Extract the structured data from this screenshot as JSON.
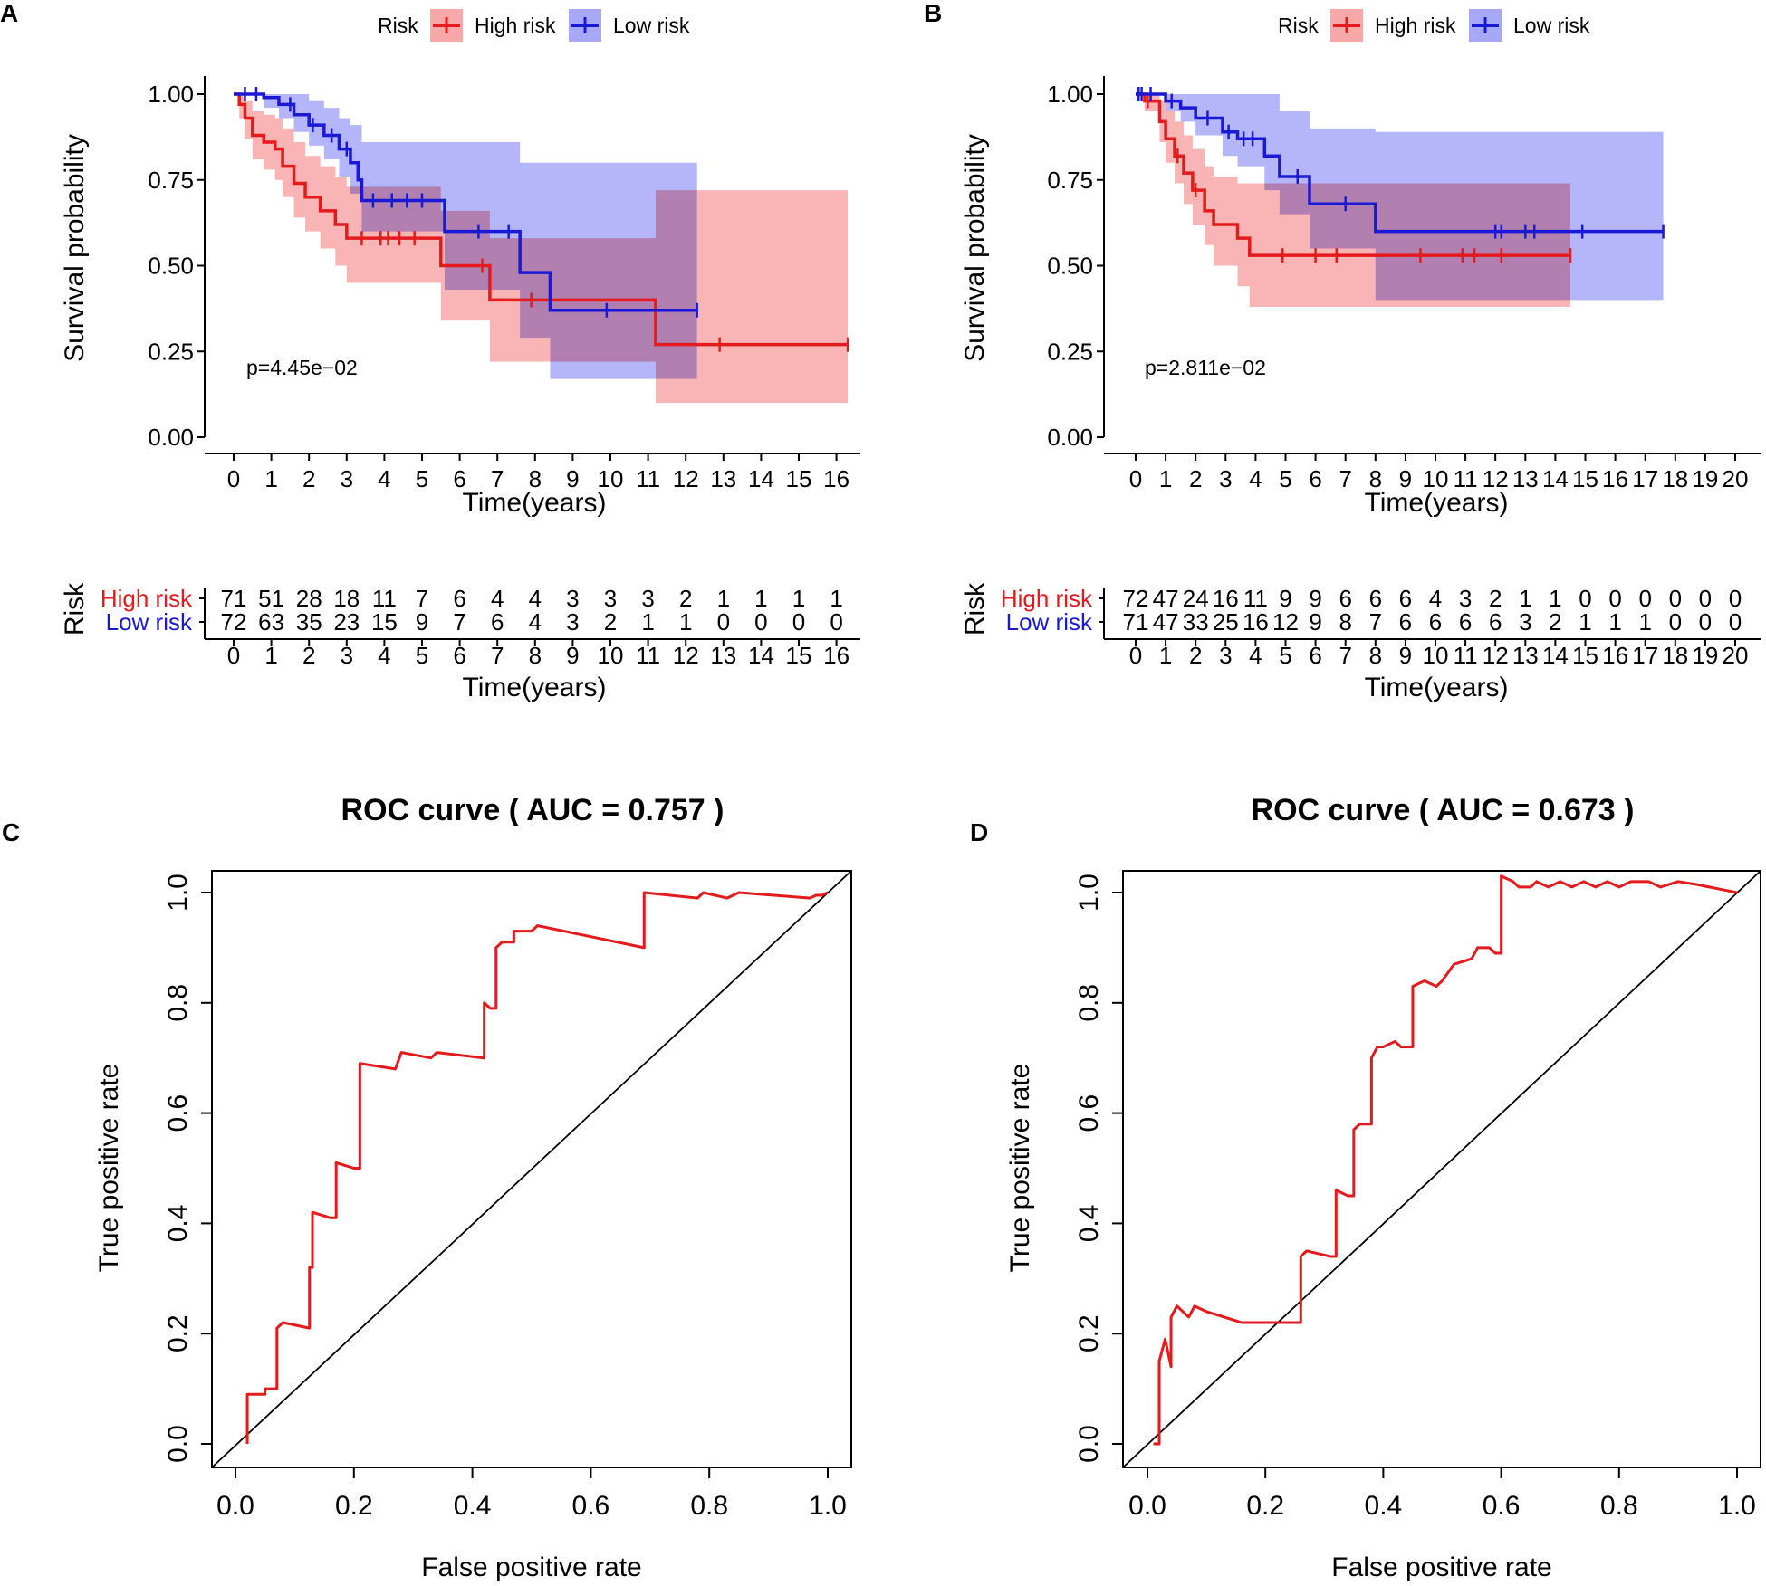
{
  "panels": {
    "A": {
      "letter": "A",
      "legend_title": "Risk",
      "legend_high": "High risk",
      "legend_low": "Low risk",
      "ylabel": "Survival probability",
      "xlabel": "Time(years)",
      "pvalue": "p=4.45e−02",
      "y_ticks": [
        "0.00",
        "0.25",
        "0.50",
        "0.75",
        "1.00"
      ],
      "x_ticks": [
        "0",
        "1",
        "2",
        "3",
        "4",
        "5",
        "6",
        "7",
        "8",
        "9",
        "10",
        "11",
        "12",
        "13",
        "14",
        "15",
        "16"
      ],
      "risk_table_ylabel": "Risk",
      "risk_table_xlabel": "Time(years)",
      "risk_high_counts": [
        "71",
        "51",
        "28",
        "18",
        "11",
        "7",
        "6",
        "4",
        "4",
        "3",
        "3",
        "3",
        "2",
        "1",
        "1",
        "1",
        "1"
      ],
      "risk_low_counts": [
        "72",
        "63",
        "35",
        "23",
        "15",
        "9",
        "7",
        "6",
        "4",
        "3",
        "2",
        "1",
        "1",
        "0",
        "0",
        "0",
        "0"
      ]
    },
    "B": {
      "letter": "B",
      "legend_title": "Risk",
      "legend_high": "High risk",
      "legend_low": "Low risk",
      "ylabel": "Survival probability",
      "xlabel": "Time(years)",
      "pvalue": "p=2.811e−02",
      "y_ticks": [
        "0.00",
        "0.25",
        "0.50",
        "0.75",
        "1.00"
      ],
      "x_ticks": [
        "0",
        "1",
        "2",
        "3",
        "4",
        "5",
        "6",
        "7",
        "8",
        "9",
        "10",
        "11",
        "12",
        "13",
        "14",
        "15",
        "16",
        "17",
        "18",
        "19",
        "20"
      ],
      "risk_table_ylabel": "Risk",
      "risk_table_xlabel": "Time(years)",
      "risk_high_counts": [
        "72",
        "47",
        "24",
        "16",
        "11",
        "9",
        "9",
        "6",
        "6",
        "6",
        "4",
        "3",
        "2",
        "1",
        "1",
        "0",
        "0",
        "0",
        "0",
        "0",
        "0"
      ],
      "risk_low_counts": [
        "71",
        "47",
        "33",
        "25",
        "16",
        "12",
        "9",
        "8",
        "7",
        "6",
        "6",
        "6",
        "6",
        "3",
        "2",
        "1",
        "1",
        "1",
        "0",
        "0",
        "0"
      ]
    },
    "C": {
      "letter": "C",
      "title": "ROC curve ( AUC =  0.757 )",
      "xlabel": "False positive rate",
      "ylabel": "True positive rate",
      "ticks": [
        "0.0",
        "0.2",
        "0.4",
        "0.6",
        "0.8",
        "1.0"
      ]
    },
    "D": {
      "letter": "D",
      "title": "ROC curve ( AUC =  0.673 )",
      "xlabel": "False positive rate",
      "ylabel": "True positive rate",
      "ticks": [
        "0.0",
        "0.2",
        "0.4",
        "0.6",
        "0.8",
        "1.0"
      ]
    }
  },
  "colors": {
    "high": "#e41a1c",
    "low": "#1a1ad6",
    "high_band": "#f8a8a8",
    "low_band": "#a8a8f8",
    "roc": "#e41a1c"
  },
  "chart_data": [
    {
      "id": "A",
      "type": "line",
      "subtype": "kaplan-meier",
      "title": "",
      "xlabel": "Time(years)",
      "ylabel": "Survival probability",
      "xlim": [
        0,
        16.3
      ],
      "ylim": [
        0,
        1
      ],
      "pvalue": "p=4.45e−02",
      "series": [
        {
          "name": "High risk",
          "color": "#e41a1c",
          "steps": [
            [
              0,
              1.0
            ],
            [
              0.15,
              0.97
            ],
            [
              0.3,
              0.93
            ],
            [
              0.5,
              0.88
            ],
            [
              0.8,
              0.86
            ],
            [
              1.1,
              0.84
            ],
            [
              1.3,
              0.79
            ],
            [
              1.6,
              0.74
            ],
            [
              1.9,
              0.7
            ],
            [
              2.3,
              0.66
            ],
            [
              2.7,
              0.62
            ],
            [
              3.0,
              0.58
            ],
            [
              5.5,
              0.5
            ],
            [
              6.8,
              0.4
            ],
            [
              8.0,
              0.4
            ],
            [
              11.2,
              0.27
            ],
            [
              16.3,
              0.27
            ]
          ],
          "ci": [
            [
              0,
              1.0,
              1.0
            ],
            [
              0.15,
              0.93,
              1.0
            ],
            [
              0.3,
              0.87,
              0.98
            ],
            [
              0.5,
              0.81,
              0.95
            ],
            [
              0.8,
              0.78,
              0.94
            ],
            [
              1.1,
              0.75,
              0.93
            ],
            [
              1.3,
              0.7,
              0.9
            ],
            [
              1.6,
              0.64,
              0.86
            ],
            [
              1.9,
              0.6,
              0.82
            ],
            [
              2.3,
              0.55,
              0.79
            ],
            [
              2.7,
              0.5,
              0.76
            ],
            [
              3.0,
              0.45,
              0.73
            ],
            [
              5.5,
              0.34,
              0.66
            ],
            [
              6.8,
              0.22,
              0.58
            ],
            [
              8.0,
              0.22,
              0.58
            ],
            [
              11.2,
              0.1,
              0.72
            ],
            [
              16.3,
              0.1,
              0.72
            ]
          ],
          "censor_times": [
            3.4,
            3.9,
            4.1,
            4.4,
            4.8,
            6.6,
            7.9,
            12.9,
            16.3
          ]
        },
        {
          "name": "Low risk",
          "color": "#1a1ad6",
          "steps": [
            [
              0,
              1.0
            ],
            [
              0.8,
              0.99
            ],
            [
              1.2,
              0.97
            ],
            [
              1.6,
              0.94
            ],
            [
              2.0,
              0.91
            ],
            [
              2.4,
              0.88
            ],
            [
              2.8,
              0.84
            ],
            [
              3.1,
              0.8
            ],
            [
              3.3,
              0.75
            ],
            [
              3.4,
              0.69
            ],
            [
              5.6,
              0.6
            ],
            [
              7.6,
              0.48
            ],
            [
              8.4,
              0.37
            ],
            [
              12.3,
              0.37
            ]
          ],
          "ci": [
            [
              0,
              1.0,
              1.0
            ],
            [
              0.8,
              0.96,
              1.0
            ],
            [
              1.2,
              0.93,
              1.0
            ],
            [
              1.6,
              0.89,
              1.0
            ],
            [
              2.0,
              0.85,
              0.98
            ],
            [
              2.4,
              0.81,
              0.96
            ],
            [
              2.8,
              0.76,
              0.93
            ],
            [
              3.1,
              0.71,
              0.91
            ],
            [
              3.4,
              0.6,
              0.86
            ],
            [
              5.6,
              0.43,
              0.86
            ],
            [
              7.6,
              0.29,
              0.8
            ],
            [
              8.4,
              0.17,
              0.8
            ],
            [
              12.3,
              0.17,
              0.8
            ]
          ],
          "censor_times": [
            0.3,
            0.6,
            1.5,
            2.1,
            2.6,
            3.0,
            3.7,
            4.2,
            4.6,
            5.0,
            6.5,
            7.3,
            9.9,
            12.3
          ]
        }
      ]
    },
    {
      "id": "B",
      "type": "line",
      "subtype": "kaplan-meier",
      "title": "",
      "xlabel": "Time(years)",
      "ylabel": "Survival probability",
      "xlim": [
        0,
        20.5
      ],
      "ylim": [
        0,
        1
      ],
      "pvalue": "p=2.811e−02",
      "series": [
        {
          "name": "High risk",
          "color": "#e41a1c",
          "steps": [
            [
              0,
              1.0
            ],
            [
              0.3,
              0.98
            ],
            [
              0.8,
              0.92
            ],
            [
              1.0,
              0.87
            ],
            [
              1.3,
              0.82
            ],
            [
              1.6,
              0.77
            ],
            [
              1.9,
              0.72
            ],
            [
              2.3,
              0.66
            ],
            [
              2.6,
              0.62
            ],
            [
              3.4,
              0.58
            ],
            [
              3.8,
              0.53
            ],
            [
              14.5,
              0.53
            ]
          ],
          "ci": [
            [
              0,
              1.0,
              1.0
            ],
            [
              0.3,
              0.95,
              1.0
            ],
            [
              0.8,
              0.86,
              0.98
            ],
            [
              1.0,
              0.8,
              0.95
            ],
            [
              1.3,
              0.74,
              0.92
            ],
            [
              1.6,
              0.68,
              0.88
            ],
            [
              1.9,
              0.62,
              0.84
            ],
            [
              2.3,
              0.56,
              0.79
            ],
            [
              2.6,
              0.5,
              0.76
            ],
            [
              3.4,
              0.44,
              0.74
            ],
            [
              3.8,
              0.38,
              0.74
            ],
            [
              14.5,
              0.38,
              0.74
            ]
          ],
          "censor_times": [
            0.4,
            1.4,
            2.0,
            4.9,
            6.0,
            6.7,
            9.5,
            10.9,
            11.3,
            12.2,
            14.5
          ]
        },
        {
          "name": "Low risk",
          "color": "#1a1ad6",
          "steps": [
            [
              0,
              1.0
            ],
            [
              1.0,
              0.98
            ],
            [
              1.5,
              0.96
            ],
            [
              2.0,
              0.93
            ],
            [
              2.9,
              0.89
            ],
            [
              3.4,
              0.87
            ],
            [
              4.3,
              0.82
            ],
            [
              4.8,
              0.76
            ],
            [
              5.8,
              0.68
            ],
            [
              8.0,
              0.6
            ],
            [
              17.6,
              0.6
            ]
          ],
          "ci": [
            [
              0,
              1.0,
              1.0
            ],
            [
              1.0,
              0.95,
              1.0
            ],
            [
              1.5,
              0.92,
              1.0
            ],
            [
              2.0,
              0.88,
              1.0
            ],
            [
              2.9,
              0.82,
              1.0
            ],
            [
              3.4,
              0.79,
              1.0
            ],
            [
              4.3,
              0.72,
              1.0
            ],
            [
              4.8,
              0.65,
              0.95
            ],
            [
              5.8,
              0.55,
              0.9
            ],
            [
              8.0,
              0.4,
              0.89
            ],
            [
              17.6,
              0.4,
              0.89
            ]
          ],
          "censor_times": [
            0.1,
            0.2,
            0.5,
            1.2,
            2.4,
            3.1,
            3.6,
            3.9,
            5.4,
            7.0,
            12.0,
            12.2,
            13.0,
            13.3,
            14.9,
            17.6
          ]
        }
      ]
    },
    {
      "id": "C",
      "type": "line",
      "subtype": "roc",
      "title": "ROC curve ( AUC =  0.757 )",
      "xlabel": "False positive rate",
      "ylabel": "True positive rate",
      "xlim": [
        0,
        1
      ],
      "ylim": [
        0,
        1
      ],
      "auc": 0.757,
      "points": [
        [
          0.02,
          0.0
        ],
        [
          0.02,
          0.09
        ],
        [
          0.05,
          0.09
        ],
        [
          0.05,
          0.1
        ],
        [
          0.07,
          0.1
        ],
        [
          0.07,
          0.21
        ],
        [
          0.08,
          0.22
        ],
        [
          0.125,
          0.21
        ],
        [
          0.125,
          0.32
        ],
        [
          0.13,
          0.32
        ],
        [
          0.13,
          0.42
        ],
        [
          0.16,
          0.41
        ],
        [
          0.17,
          0.41
        ],
        [
          0.17,
          0.51
        ],
        [
          0.2,
          0.5
        ],
        [
          0.21,
          0.5
        ],
        [
          0.21,
          0.69
        ],
        [
          0.27,
          0.68
        ],
        [
          0.28,
          0.71
        ],
        [
          0.33,
          0.7
        ],
        [
          0.34,
          0.71
        ],
        [
          0.42,
          0.7
        ],
        [
          0.42,
          0.8
        ],
        [
          0.43,
          0.79
        ],
        [
          0.44,
          0.79
        ],
        [
          0.44,
          0.9
        ],
        [
          0.45,
          0.91
        ],
        [
          0.47,
          0.91
        ],
        [
          0.47,
          0.93
        ],
        [
          0.5,
          0.93
        ],
        [
          0.51,
          0.94
        ],
        [
          0.69,
          0.9
        ],
        [
          0.69,
          1.0
        ],
        [
          0.78,
          0.99
        ],
        [
          0.79,
          1.0
        ],
        [
          0.83,
          0.99
        ],
        [
          0.85,
          1.0
        ],
        [
          0.97,
          0.99
        ],
        [
          0.98,
          0.995
        ],
        [
          0.99,
          0.995
        ],
        [
          1.0,
          1.0
        ]
      ],
      "reference_line": [
        [
          0,
          0
        ],
        [
          1,
          1
        ]
      ]
    },
    {
      "id": "D",
      "type": "line",
      "subtype": "roc",
      "title": "ROC curve ( AUC =  0.673 )",
      "xlabel": "False positive rate",
      "ylabel": "True positive rate",
      "xlim": [
        0,
        1
      ],
      "ylim": [
        0,
        1
      ],
      "auc": 0.673,
      "points": [
        [
          0.01,
          0.0
        ],
        [
          0.02,
          0.0
        ],
        [
          0.02,
          0.15
        ],
        [
          0.03,
          0.19
        ],
        [
          0.04,
          0.14
        ],
        [
          0.04,
          0.23
        ],
        [
          0.05,
          0.25
        ],
        [
          0.07,
          0.23
        ],
        [
          0.08,
          0.25
        ],
        [
          0.1,
          0.24
        ],
        [
          0.16,
          0.22
        ],
        [
          0.22,
          0.22
        ],
        [
          0.26,
          0.22
        ],
        [
          0.26,
          0.34
        ],
        [
          0.27,
          0.35
        ],
        [
          0.31,
          0.34
        ],
        [
          0.32,
          0.34
        ],
        [
          0.32,
          0.46
        ],
        [
          0.34,
          0.45
        ],
        [
          0.35,
          0.45
        ],
        [
          0.35,
          0.57
        ],
        [
          0.36,
          0.58
        ],
        [
          0.38,
          0.58
        ],
        [
          0.38,
          0.7
        ],
        [
          0.39,
          0.72
        ],
        [
          0.4,
          0.72
        ],
        [
          0.42,
          0.73
        ],
        [
          0.43,
          0.72
        ],
        [
          0.45,
          0.72
        ],
        [
          0.45,
          0.83
        ],
        [
          0.47,
          0.84
        ],
        [
          0.49,
          0.83
        ],
        [
          0.5,
          0.84
        ],
        [
          0.52,
          0.87
        ],
        [
          0.55,
          0.88
        ],
        [
          0.56,
          0.9
        ],
        [
          0.58,
          0.9
        ],
        [
          0.59,
          0.89
        ],
        [
          0.6,
          0.89
        ],
        [
          0.6,
          1.03
        ],
        [
          0.62,
          1.02
        ],
        [
          0.63,
          1.01
        ],
        [
          0.65,
          1.01
        ],
        [
          0.66,
          1.02
        ],
        [
          0.68,
          1.01
        ],
        [
          0.7,
          1.02
        ],
        [
          0.72,
          1.01
        ],
        [
          0.74,
          1.02
        ],
        [
          0.76,
          1.01
        ],
        [
          0.78,
          1.02
        ],
        [
          0.8,
          1.01
        ],
        [
          0.82,
          1.02
        ],
        [
          0.85,
          1.02
        ],
        [
          0.87,
          1.01
        ],
        [
          0.9,
          1.02
        ],
        [
          0.93,
          1.015
        ],
        [
          1.0,
          1.0
        ]
      ],
      "reference_line": [
        [
          0,
          0
        ],
        [
          1,
          1
        ]
      ]
    }
  ]
}
